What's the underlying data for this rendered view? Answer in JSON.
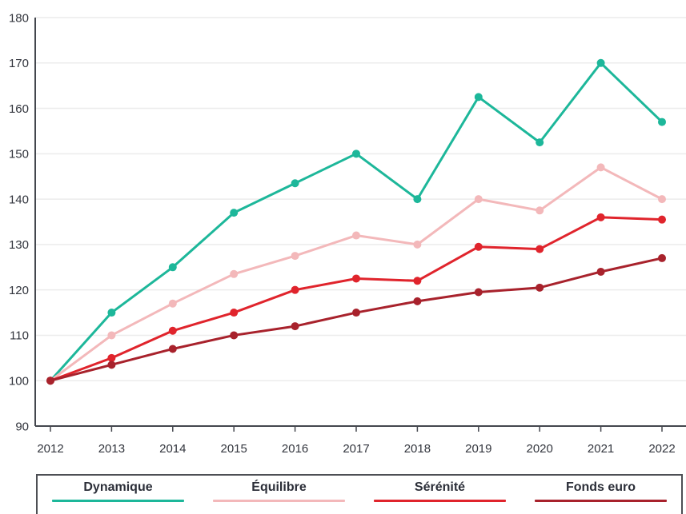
{
  "chart_data": {
    "type": "line",
    "x": [
      "2012",
      "2013",
      "2014",
      "2015",
      "2016",
      "2017",
      "2018",
      "2019",
      "2020",
      "2021",
      "2022"
    ],
    "series": [
      {
        "name": "Dynamique",
        "color": "#1db79a",
        "values": [
          100,
          115,
          125,
          137,
          143.5,
          150,
          140,
          162.5,
          152.5,
          170,
          157
        ]
      },
      {
        "name": "Équilibre",
        "color": "#f3b8ba",
        "values": [
          100,
          110,
          117,
          123.5,
          127.5,
          132,
          130,
          140,
          137.5,
          147,
          140
        ]
      },
      {
        "name": "Sérénité",
        "color": "#e0242c",
        "values": [
          100,
          105,
          111,
          115,
          120,
          122.5,
          122,
          129.5,
          129,
          136,
          135.5
        ]
      },
      {
        "name": "Fonds euro",
        "color": "#a8222c",
        "values": [
          100,
          103.5,
          107,
          110,
          112,
          115,
          117.5,
          119.5,
          120.5,
          124,
          127
        ]
      }
    ],
    "title": "",
    "xlabel": "",
    "ylabel": "",
    "ylim": [
      90,
      180
    ],
    "ytick_step": 10,
    "grid": true,
    "legend_position": "bottom"
  },
  "colors": {
    "background": "#ffffff",
    "grid": "#ececec",
    "axis": "#44474e",
    "tick_text": "#32353d",
    "legend_border": "#4d4f54",
    "legend_text": "#2b2e38"
  }
}
